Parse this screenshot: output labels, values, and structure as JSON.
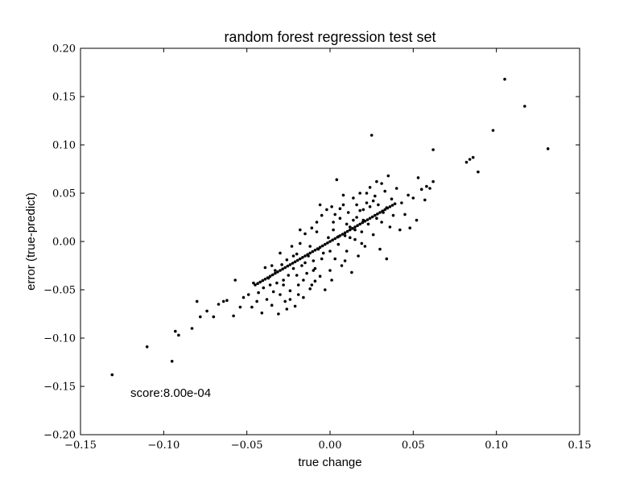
{
  "chart_data": {
    "type": "scatter",
    "title": "random forest regression test set",
    "xlabel": "true change",
    "ylabel": "error (true-predict)",
    "xlim": [
      -0.15,
      0.15
    ],
    "ylim": [
      -0.2,
      0.2
    ],
    "xticks": [
      -0.15,
      -0.1,
      -0.05,
      0.0,
      0.05,
      0.1,
      0.15
    ],
    "yticks": [
      -0.2,
      -0.15,
      -0.1,
      -0.05,
      0.0,
      0.05,
      0.1,
      0.15,
      0.2
    ],
    "xtick_labels": [
      "−0.15",
      "−0.10",
      "−0.05",
      "0.00",
      "0.05",
      "0.10",
      "0.15"
    ],
    "ytick_labels": [
      "−0.20",
      "−0.15",
      "−0.10",
      "−0.05",
      "0.00",
      "0.05",
      "0.10",
      "0.15",
      "0.20"
    ],
    "grid": false,
    "marker_color": "#000000",
    "annotation": "score:8.00e-04",
    "points": [
      [
        -0.131,
        -0.138
      ],
      [
        -0.11,
        -0.109
      ],
      [
        -0.095,
        -0.124
      ],
      [
        -0.093,
        -0.093
      ],
      [
        -0.091,
        -0.097
      ],
      [
        -0.083,
        -0.09
      ],
      [
        -0.08,
        -0.062
      ],
      [
        -0.078,
        -0.078
      ],
      [
        -0.074,
        -0.072
      ],
      [
        -0.07,
        -0.078
      ],
      [
        -0.067,
        -0.065
      ],
      [
        -0.064,
        -0.062
      ],
      [
        -0.062,
        -0.061
      ],
      [
        -0.058,
        -0.077
      ],
      [
        -0.057,
        -0.04
      ],
      [
        -0.054,
        -0.068
      ],
      [
        -0.052,
        -0.058
      ],
      [
        -0.049,
        -0.055
      ],
      [
        -0.047,
        -0.068
      ],
      [
        -0.046,
        -0.043
      ],
      [
        -0.044,
        -0.062
      ],
      [
        -0.043,
        -0.053
      ],
      [
        -0.041,
        -0.074
      ],
      [
        -0.04,
        -0.048
      ],
      [
        -0.039,
        -0.027
      ],
      [
        -0.038,
        -0.06
      ],
      [
        -0.037,
        -0.038
      ],
      [
        -0.036,
        -0.045
      ],
      [
        -0.035,
        -0.066
      ],
      [
        -0.034,
        -0.052
      ],
      [
        -0.033,
        -0.03
      ],
      [
        -0.032,
        -0.043
      ],
      [
        -0.031,
        -0.075
      ],
      [
        -0.03,
        -0.055
      ],
      [
        -0.029,
        -0.024
      ],
      [
        -0.028,
        -0.04
      ],
      [
        -0.027,
        -0.062
      ],
      [
        -0.026,
        -0.019
      ],
      [
        -0.025,
        -0.035
      ],
      [
        -0.024,
        -0.051
      ],
      [
        -0.023,
        -0.005
      ],
      [
        -0.022,
        -0.028
      ],
      [
        -0.021,
        -0.067
      ],
      [
        -0.02,
        -0.013
      ],
      [
        -0.019,
        -0.045
      ],
      [
        -0.018,
        -0.002
      ],
      [
        -0.017,
        -0.025
      ],
      [
        -0.016,
        -0.058
      ],
      [
        -0.015,
        0.008
      ],
      [
        -0.014,
        -0.033
      ],
      [
        -0.013,
        -0.015
      ],
      [
        -0.012,
        -0.049
      ],
      [
        -0.011,
        0.014
      ],
      [
        -0.01,
        -0.02
      ],
      [
        -0.009,
        -0.041
      ],
      [
        -0.008,
        0.02
      ],
      [
        -0.007,
        -0.008
      ],
      [
        -0.006,
        -0.036
      ],
      [
        -0.005,
        0.027
      ],
      [
        -0.004,
        -0.012
      ],
      [
        -0.003,
        -0.05
      ],
      [
        -0.002,
        0.033
      ],
      [
        -0.001,
        0.004
      ],
      [
        0.0,
        -0.03
      ],
      [
        0.001,
        0.036
      ],
      [
        0.002,
        0.012
      ],
      [
        0.003,
        -0.018
      ],
      [
        0.004,
        0.064
      ],
      [
        0.005,
        -0.003
      ],
      [
        0.006,
        0.024
      ],
      [
        0.007,
        -0.025
      ],
      [
        0.008,
        0.038
      ],
      [
        0.009,
        0.006
      ],
      [
        0.01,
        -0.01
      ],
      [
        0.011,
        0.03
      ],
      [
        0.012,
        0.015
      ],
      [
        0.013,
        -0.032
      ],
      [
        0.014,
        0.045
      ],
      [
        0.015,
        0.002
      ],
      [
        0.016,
        0.025
      ],
      [
        0.017,
        -0.015
      ],
      [
        0.018,
        0.05
      ],
      [
        0.019,
        0.01
      ],
      [
        0.02,
        0.033
      ],
      [
        0.021,
        -0.005
      ],
      [
        0.022,
        0.04
      ],
      [
        0.023,
        0.018
      ],
      [
        0.024,
        0.056
      ],
      [
        0.025,
        0.11
      ],
      [
        0.026,
        0.007
      ],
      [
        0.027,
        0.047
      ],
      [
        0.028,
        0.024
      ],
      [
        0.029,
        0.038
      ],
      [
        0.03,
        -0.008
      ],
      [
        0.031,
        0.06
      ],
      [
        0.032,
        0.03
      ],
      [
        0.033,
        0.052
      ],
      [
        0.034,
        -0.018
      ],
      [
        0.035,
        0.068
      ],
      [
        0.036,
        0.015
      ],
      [
        0.037,
        0.044
      ],
      [
        0.038,
        0.027
      ],
      [
        0.04,
        0.055
      ],
      [
        0.042,
        0.012
      ],
      [
        0.043,
        0.04
      ],
      [
        0.045,
        0.028
      ],
      [
        0.047,
        0.048
      ],
      [
        0.048,
        0.014
      ],
      [
        0.05,
        0.045
      ],
      [
        0.052,
        0.022
      ],
      [
        0.053,
        0.066
      ],
      [
        0.055,
        0.054
      ],
      [
        0.057,
        0.043
      ],
      [
        0.058,
        0.057
      ],
      [
        0.06,
        0.055
      ],
      [
        0.062,
        0.095
      ],
      [
        0.062,
        0.062
      ],
      [
        0.082,
        0.082
      ],
      [
        0.084,
        0.085
      ],
      [
        0.086,
        0.087
      ],
      [
        0.089,
        0.072
      ],
      [
        0.098,
        0.115
      ],
      [
        0.105,
        0.168
      ],
      [
        0.117,
        0.14
      ],
      [
        0.131,
        0.096
      ],
      [
        -0.02,
        -0.035
      ],
      [
        -0.015,
        -0.022
      ],
      [
        -0.01,
        -0.03
      ],
      [
        -0.005,
        -0.018
      ],
      [
        0.0,
        -0.01
      ],
      [
        0.005,
        0.005
      ],
      [
        0.01,
        0.018
      ],
      [
        0.015,
        0.012
      ],
      [
        0.02,
        0.022
      ],
      [
        -0.028,
        -0.045
      ],
      [
        -0.024,
        -0.06
      ],
      [
        -0.016,
        -0.04
      ],
      [
        -0.012,
        -0.005
      ],
      [
        -0.008,
        0.01
      ],
      [
        0.002,
        0.02
      ],
      [
        0.006,
        0.034
      ],
      [
        0.012,
        0.004
      ],
      [
        0.018,
        0.032
      ],
      [
        0.024,
        0.036
      ],
      [
        -0.035,
        -0.025
      ],
      [
        -0.03,
        -0.012
      ],
      [
        -0.022,
        -0.015
      ],
      [
        -0.018,
        0.012
      ],
      [
        -0.009,
        -0.028
      ],
      [
        0.003,
        0.028
      ],
      [
        0.009,
        -0.02
      ],
      [
        0.014,
        0.022
      ],
      [
        0.019,
        -0.002
      ],
      [
        0.026,
        0.042
      ],
      [
        0.031,
        0.02
      ],
      [
        -0.026,
        -0.07
      ],
      [
        -0.019,
        -0.055
      ],
      [
        -0.011,
        -0.045
      ],
      [
        -0.006,
        0.038
      ],
      [
        0.001,
        -0.04
      ],
      [
        0.008,
        0.048
      ],
      [
        0.016,
        0.038
      ],
      [
        0.022,
        0.05
      ],
      [
        0.028,
        0.062
      ],
      [
        0.034,
        0.035
      ]
    ],
    "trend_x": [
      -0.045,
      0.04
    ]
  }
}
